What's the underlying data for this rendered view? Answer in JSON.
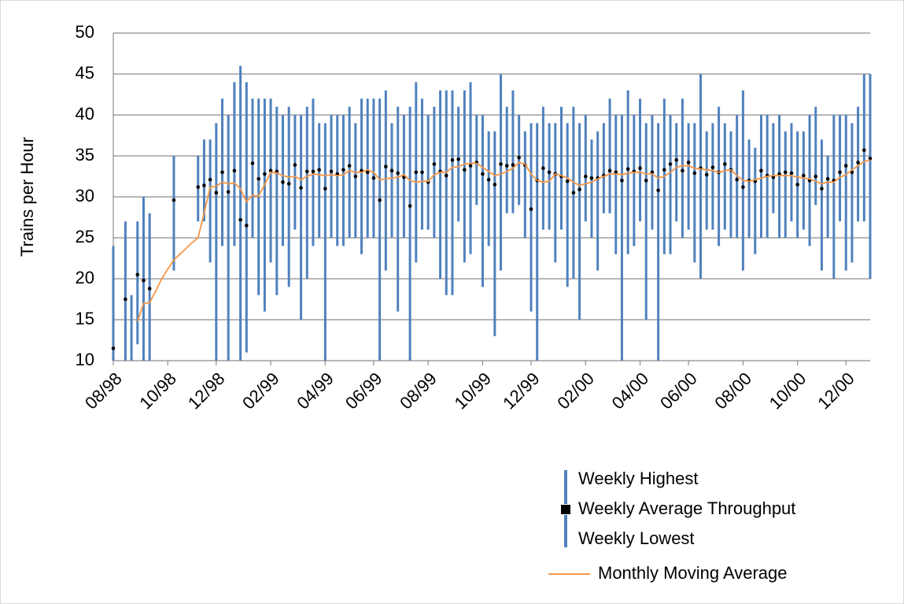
{
  "chart_data": {
    "type": "high-low-average",
    "y_label": "Trains per Hour",
    "categories": [
      "08/98",
      null,
      null,
      null,
      null,
      null,
      null,
      null,
      null,
      "10/98",
      null,
      null,
      null,
      null,
      null,
      null,
      null,
      "12/98",
      null,
      null,
      null,
      null,
      null,
      null,
      null,
      null,
      "02/99",
      null,
      null,
      null,
      null,
      null,
      null,
      null,
      null,
      "04/99",
      null,
      null,
      null,
      null,
      null,
      null,
      null,
      "06/99",
      null,
      null,
      null,
      null,
      null,
      null,
      null,
      null,
      "08/99",
      null,
      null,
      null,
      null,
      null,
      null,
      null,
      null,
      "10/99",
      null,
      null,
      null,
      null,
      null,
      null,
      null,
      "12/99",
      null,
      null,
      null,
      null,
      null,
      null,
      null,
      null,
      "02/00",
      null,
      null,
      null,
      null,
      null,
      null,
      null,
      null,
      "04/00",
      null,
      null,
      null,
      null,
      null,
      null,
      null,
      "06/00",
      null,
      null,
      null,
      null,
      null,
      null,
      null,
      null,
      "08/00",
      null,
      null,
      null,
      null,
      null,
      null,
      null,
      null,
      "10/00",
      null,
      null,
      null,
      null,
      null,
      null,
      null,
      "12/00",
      null,
      null,
      null,
      null
    ],
    "series": [
      {
        "name": "Weekly Highest",
        "color": "#4f81bd",
        "values": [
          24,
          null,
          27,
          18,
          27,
          30,
          28,
          null,
          null,
          null,
          35,
          null,
          null,
          null,
          35,
          37,
          37,
          39,
          42,
          40,
          44,
          46,
          44,
          42,
          42,
          42,
          42,
          41,
          40,
          41,
          40,
          40,
          41,
          42,
          39,
          39,
          40,
          40,
          40,
          41,
          39,
          42,
          42,
          42,
          42,
          43,
          39,
          41,
          40,
          41,
          44,
          42,
          40,
          41,
          43,
          43,
          43,
          41,
          43,
          44,
          40,
          40,
          38,
          38,
          45,
          41,
          43,
          40,
          38,
          39,
          39,
          41,
          39,
          39,
          41,
          39,
          41,
          39,
          40,
          37,
          38,
          39,
          42,
          40,
          40,
          43,
          40,
          42,
          39,
          40,
          39,
          42,
          40,
          39,
          42,
          39,
          39,
          45,
          38,
          39,
          41,
          39,
          38,
          40,
          43,
          37,
          36,
          40,
          40,
          39,
          40,
          38,
          39,
          38,
          38,
          40,
          41,
          37,
          35,
          40,
          40,
          40,
          39,
          41,
          45,
          45
        ]
      },
      {
        "name": "Weekly Average Throughput",
        "color": "#000000",
        "values": [
          11.5,
          null,
          17.5,
          null,
          20.5,
          19.8,
          18.8,
          null,
          null,
          null,
          29.6,
          null,
          null,
          null,
          31.2,
          31.4,
          32.1,
          30.5,
          33.0,
          30.6,
          33.2,
          27.2,
          26.5,
          34.1,
          32.2,
          32.8,
          33.2,
          33.1,
          31.8,
          31.6,
          33.9,
          31.1,
          33.1,
          33.1,
          33.3,
          31.0,
          33.1,
          32.8,
          33.3,
          33.8,
          32.5,
          33.2,
          33.0,
          32.3,
          29.6,
          33.7,
          33.2,
          32.9,
          32.4,
          28.9,
          33.0,
          33.0,
          31.8,
          34.0,
          33.1,
          32.6,
          34.5,
          34.6,
          33.3,
          33.8,
          34.2,
          32.8,
          32.1,
          31.5,
          34.0,
          33.8,
          33.9,
          34.8,
          33.9,
          28.5,
          32.0,
          33.5,
          33.0,
          32.8,
          32.5,
          31.9,
          30.5,
          30.9,
          32.5,
          32.3,
          32.3,
          32.6,
          33.2,
          33.0,
          32.0,
          33.4,
          33.1,
          33.5,
          32.0,
          33.0,
          30.8,
          33.3,
          34.0,
          34.5,
          33.2,
          34.2,
          32.9,
          33.5,
          32.7,
          33.6,
          33.0,
          34.0,
          33.3,
          32.1,
          31.2,
          32.0,
          31.9,
          33.2,
          32.6,
          32.4,
          32.8,
          33.0,
          32.9,
          31.5,
          32.6,
          32.0,
          32.5,
          31.0,
          32.2,
          32.0,
          33.0,
          33.8,
          33.0,
          34.2,
          35.7,
          34.7
        ]
      },
      {
        "name": "Weekly Lowest",
        "color": "#4f81bd",
        "values": [
          10,
          null,
          10,
          10,
          12,
          10,
          10,
          null,
          null,
          null,
          21,
          null,
          null,
          null,
          27,
          27,
          22,
          10,
          24,
          10,
          24,
          10,
          11,
          25,
          18,
          16,
          22,
          18,
          24,
          19,
          26,
          15,
          20,
          24,
          25,
          10,
          25,
          24,
          24,
          25,
          25,
          23,
          25,
          25,
          10,
          21,
          25,
          16,
          25,
          10,
          22,
          26,
          26,
          25,
          20,
          18,
          18,
          27,
          22,
          23,
          29,
          19,
          24,
          13,
          21,
          28,
          28,
          29,
          25,
          16,
          10,
          26,
          26,
          22,
          26,
          19,
          20,
          15,
          27,
          25,
          21,
          28,
          28,
          23,
          10,
          23,
          24,
          27,
          15,
          26,
          10,
          23,
          23,
          27,
          25,
          26,
          22,
          20,
          26,
          26,
          24,
          26,
          25,
          25,
          21,
          25,
          23,
          25,
          25,
          28,
          25,
          25,
          27,
          25,
          26,
          24,
          29,
          21,
          25,
          20,
          27,
          21,
          22,
          27,
          27,
          20
        ]
      },
      {
        "name": "Monthly Moving Average",
        "color": "#f79646",
        "values": [
          null,
          null,
          null,
          null,
          14.8,
          17.0,
          17.1,
          18.5,
          20.0,
          21.2,
          22.3,
          23.0,
          23.7,
          24.4,
          25.0,
          28.0,
          31.2,
          31.3,
          31.8,
          31.6,
          31.7,
          31.0,
          29.4,
          30.2,
          30.1,
          31.5,
          33.0,
          32.9,
          32.6,
          32.4,
          32.5,
          32.1,
          32.5,
          32.8,
          32.7,
          32.6,
          32.7,
          32.6,
          32.7,
          33.2,
          33.0,
          33.0,
          33.3,
          33.0,
          32.1,
          32.2,
          32.3,
          32.4,
          32.7,
          32.0,
          31.8,
          31.9,
          31.9,
          32.7,
          33.0,
          33.0,
          33.6,
          33.7,
          34.0,
          34.1,
          34.1,
          33.6,
          33.1,
          32.6,
          32.8,
          33.1,
          33.5,
          34.2,
          34.0,
          32.8,
          32.0,
          31.8,
          31.9,
          32.8,
          32.6,
          32.3,
          31.8,
          31.4,
          31.6,
          31.8,
          32.2,
          32.5,
          32.8,
          32.8,
          32.7,
          32.9,
          33.0,
          33.0,
          32.8,
          32.8,
          32.3,
          32.5,
          33.0,
          33.6,
          33.8,
          33.8,
          33.5,
          33.4,
          33.3,
          33.2,
          33.0,
          33.2,
          33.3,
          32.6,
          32.0,
          31.9,
          32.1,
          32.3,
          32.5,
          32.6,
          32.6,
          32.6,
          32.6,
          32.4,
          32.3,
          32.2,
          31.9,
          31.6,
          31.8,
          31.8,
          32.4,
          32.7,
          33.3,
          33.8,
          34.3,
          34.5
        ]
      }
    ],
    "ylim": [
      10,
      50
    ],
    "yticks": [
      10,
      15,
      20,
      25,
      30,
      35,
      40,
      45,
      50
    ],
    "grid": true
  }
}
